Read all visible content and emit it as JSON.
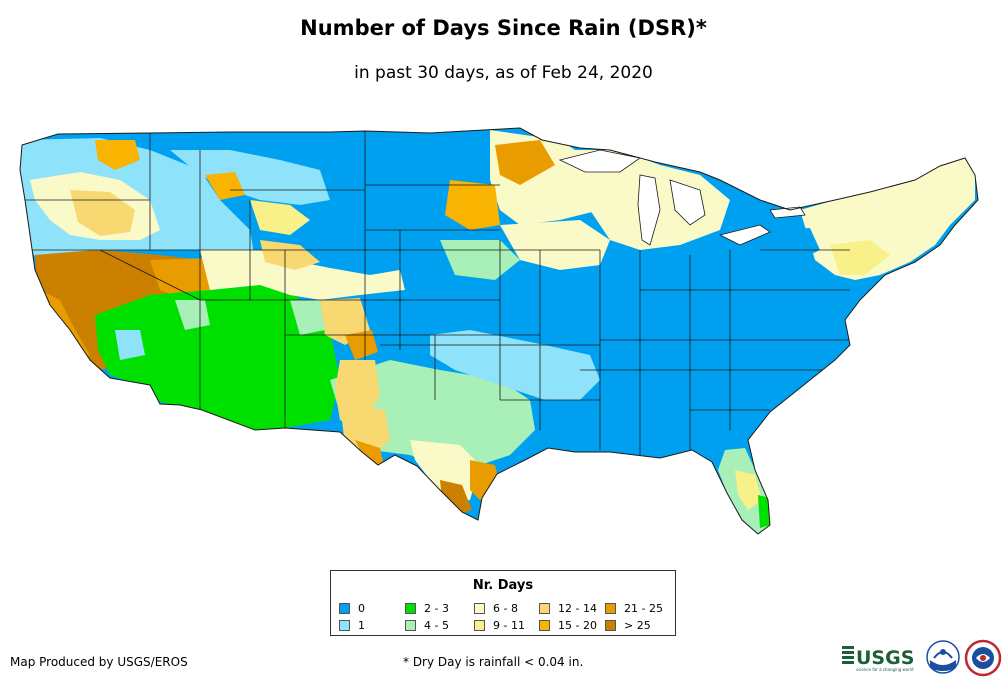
{
  "title": "Number of Days Since Rain (DSR)*",
  "subtitle": "in past 30 days, as of Feb 24, 2020",
  "legend": {
    "title": "Nr. Days",
    "items": [
      {
        "label": "0",
        "color": "#00a0f0"
      },
      {
        "label": "1",
        "color": "#8ee2fa"
      },
      {
        "label": "2 - 3",
        "color": "#00e000"
      },
      {
        "label": "4 - 5",
        "color": "#a8f0b8"
      },
      {
        "label": "6 - 8",
        "color": "#fafac8"
      },
      {
        "label": "9 - 11",
        "color": "#f8f088"
      },
      {
        "label": "12 - 14",
        "color": "#f8d870"
      },
      {
        "label": "15 - 20",
        "color": "#f8b400"
      },
      {
        "label": "21 - 25",
        "color": "#e89c00"
      },
      {
        "label": "> 25",
        "color": "#cc8000"
      }
    ]
  },
  "credit": "Map Produced by USGS/EROS",
  "footnote": "* Dry Day is rainfall < 0.04 in.",
  "logos": {
    "usgs": "USGS",
    "usgs_tagline": "science for a changing world",
    "noaa": "noaa-logo",
    "nws": "nws-logo"
  }
}
